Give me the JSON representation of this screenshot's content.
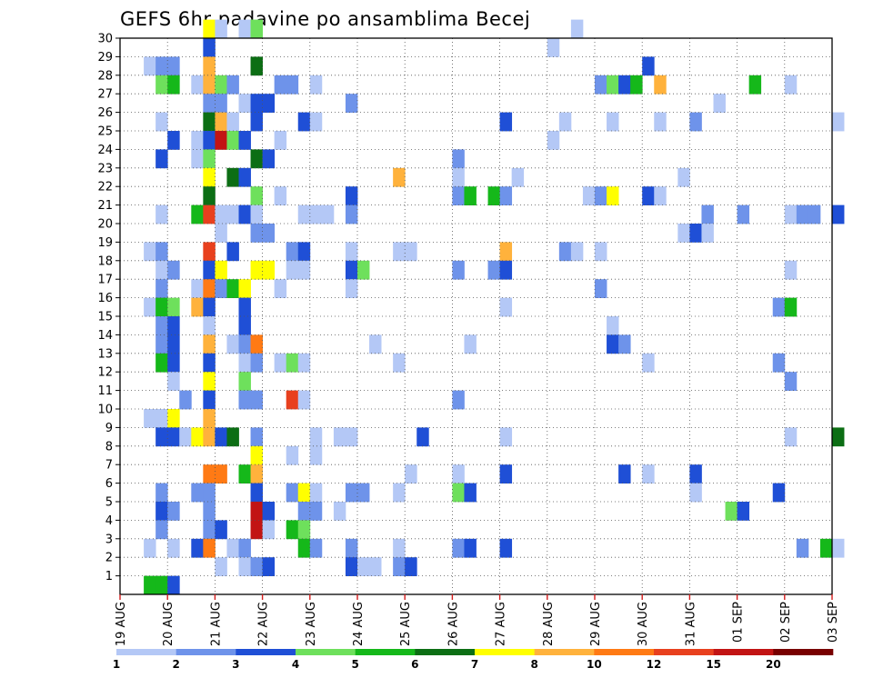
{
  "chart_data": {
    "type": "heatmap",
    "title": "GEFS 6hr padavine po ansamblima Becej",
    "x_tick_labels": [
      "19 AUG",
      "20 AUG",
      "21 AUG",
      "22 AUG",
      "23 AUG",
      "24 AUG",
      "25 AUG",
      "26 AUG",
      "27 AUG",
      "28 AUG",
      "29 AUG",
      "30 AUG",
      "31 AUG",
      "01 SEP",
      "02 SEP",
      "03 SEP"
    ],
    "x_range": [
      "19 AUG 00h",
      "03 SEP 00h"
    ],
    "x_step_hours": 6,
    "y_tick_labels": [
      "1",
      "2",
      "3",
      "4",
      "5",
      "6",
      "7",
      "8",
      "9",
      "10",
      "11",
      "12",
      "13",
      "14",
      "15",
      "16",
      "17",
      "18",
      "19",
      "20",
      "21",
      "22",
      "23",
      "24",
      "25",
      "26",
      "27",
      "28",
      "29",
      "30"
    ],
    "y_range": [
      0,
      30
    ],
    "grid": true,
    "legend_position": "bottom",
    "color_scale": [
      {
        "label": "1",
        "color": "#b4c8f6"
      },
      {
        "label": "2",
        "color": "#6e93ea"
      },
      {
        "label": "3",
        "color": "#1f4fd6"
      },
      {
        "label": "4",
        "color": "#6ee05c"
      },
      {
        "label": "5",
        "color": "#15b81a"
      },
      {
        "label": "6",
        "color": "#0c6e14"
      },
      {
        "label": "7",
        "color": "#ffff00"
      },
      {
        "label": "8",
        "color": "#ffb23c"
      },
      {
        "label": "10",
        "color": "#ff7a14"
      },
      {
        "label": "12",
        "color": "#e8401e"
      },
      {
        "label": "15",
        "color": "#c21414"
      },
      {
        "label": "20",
        "color": "#780000"
      }
    ],
    "cells_note": "each cell: [member, step index from 19 AUG 00h in 6hr steps, color class index 0-11]",
    "cells": [
      [
        30,
        7,
        6
      ],
      [
        30,
        8,
        0
      ],
      [
        30,
        10,
        0
      ],
      [
        30,
        11,
        3
      ],
      [
        30,
        38,
        0
      ],
      [
        29,
        7,
        2
      ],
      [
        29,
        36,
        0
      ],
      [
        28,
        2,
        0
      ],
      [
        28,
        3,
        1
      ],
      [
        28,
        4,
        1
      ],
      [
        28,
        7,
        7
      ],
      [
        28,
        11,
        5
      ],
      [
        28,
        44,
        2
      ],
      [
        27,
        3,
        3
      ],
      [
        27,
        4,
        4
      ],
      [
        27,
        6,
        0
      ],
      [
        27,
        7,
        7
      ],
      [
        27,
        8,
        3
      ],
      [
        27,
        9,
        1
      ],
      [
        27,
        13,
        1
      ],
      [
        27,
        14,
        1
      ],
      [
        27,
        16,
        0
      ],
      [
        27,
        40,
        1
      ],
      [
        27,
        41,
        3
      ],
      [
        27,
        42,
        2
      ],
      [
        27,
        43,
        4
      ],
      [
        27,
        45,
        7
      ],
      [
        27,
        53,
        4
      ],
      [
        27,
        56,
        0
      ],
      [
        26,
        7,
        1
      ],
      [
        26,
        8,
        1
      ],
      [
        26,
        10,
        0
      ],
      [
        26,
        11,
        2
      ],
      [
        26,
        12,
        2
      ],
      [
        26,
        19,
        1
      ],
      [
        26,
        50,
        0
      ],
      [
        25,
        3,
        0
      ],
      [
        25,
        7,
        5
      ],
      [
        25,
        8,
        7
      ],
      [
        25,
        9,
        0
      ],
      [
        25,
        11,
        2
      ],
      [
        25,
        15,
        2
      ],
      [
        25,
        16,
        0
      ],
      [
        25,
        32,
        2
      ],
      [
        25,
        37,
        0
      ],
      [
        25,
        41,
        0
      ],
      [
        25,
        45,
        0
      ],
      [
        25,
        48,
        1
      ],
      [
        25,
        60,
        0
      ],
      [
        24,
        4,
        2
      ],
      [
        24,
        6,
        0
      ],
      [
        24,
        7,
        2
      ],
      [
        24,
        8,
        10
      ],
      [
        24,
        9,
        3
      ],
      [
        24,
        10,
        2
      ],
      [
        24,
        13,
        0
      ],
      [
        24,
        36,
        0
      ],
      [
        23,
        3,
        2
      ],
      [
        23,
        6,
        0
      ],
      [
        23,
        7,
        3
      ],
      [
        23,
        11,
        5
      ],
      [
        23,
        12,
        2
      ],
      [
        23,
        28,
        1
      ],
      [
        22,
        7,
        6
      ],
      [
        22,
        9,
        5
      ],
      [
        22,
        10,
        2
      ],
      [
        22,
        23,
        7
      ],
      [
        22,
        28,
        0
      ],
      [
        22,
        33,
        0
      ],
      [
        22,
        47,
        0
      ],
      [
        21,
        7,
        5
      ],
      [
        21,
        11,
        3
      ],
      [
        21,
        13,
        0
      ],
      [
        21,
        19,
        2
      ],
      [
        21,
        28,
        1
      ],
      [
        21,
        29,
        4
      ],
      [
        21,
        31,
        4
      ],
      [
        21,
        32,
        1
      ],
      [
        21,
        39,
        0
      ],
      [
        21,
        40,
        1
      ],
      [
        21,
        41,
        6
      ],
      [
        21,
        44,
        2
      ],
      [
        21,
        45,
        0
      ],
      [
        20,
        3,
        0
      ],
      [
        20,
        6,
        4
      ],
      [
        20,
        7,
        9
      ],
      [
        20,
        8,
        0
      ],
      [
        20,
        9,
        0
      ],
      [
        20,
        10,
        2
      ],
      [
        20,
        11,
        0
      ],
      [
        20,
        15,
        0
      ],
      [
        20,
        16,
        0
      ],
      [
        20,
        17,
        0
      ],
      [
        20,
        19,
        1
      ],
      [
        20,
        49,
        1
      ],
      [
        20,
        52,
        1
      ],
      [
        20,
        56,
        0
      ],
      [
        20,
        57,
        1
      ],
      [
        20,
        58,
        1
      ],
      [
        20,
        60,
        2
      ],
      [
        19,
        8,
        0
      ],
      [
        19,
        11,
        1
      ],
      [
        19,
        12,
        1
      ],
      [
        19,
        47,
        0
      ],
      [
        19,
        48,
        2
      ],
      [
        19,
        49,
        0
      ],
      [
        18,
        2,
        0
      ],
      [
        18,
        3,
        1
      ],
      [
        18,
        7,
        9
      ],
      [
        18,
        9,
        2
      ],
      [
        18,
        14,
        1
      ],
      [
        18,
        15,
        2
      ],
      [
        18,
        19,
        0
      ],
      [
        18,
        23,
        0
      ],
      [
        18,
        24,
        0
      ],
      [
        18,
        32,
        7
      ],
      [
        18,
        37,
        1
      ],
      [
        18,
        38,
        0
      ],
      [
        18,
        40,
        0
      ],
      [
        17,
        3,
        0
      ],
      [
        17,
        4,
        1
      ],
      [
        17,
        7,
        2
      ],
      [
        17,
        8,
        6
      ],
      [
        17,
        11,
        6
      ],
      [
        17,
        12,
        6
      ],
      [
        17,
        14,
        0
      ],
      [
        17,
        15,
        0
      ],
      [
        17,
        19,
        2
      ],
      [
        17,
        20,
        3
      ],
      [
        17,
        28,
        1
      ],
      [
        17,
        31,
        1
      ],
      [
        17,
        32,
        2
      ],
      [
        17,
        56,
        0
      ],
      [
        16,
        3,
        1
      ],
      [
        16,
        6,
        0
      ],
      [
        16,
        7,
        8
      ],
      [
        16,
        8,
        1
      ],
      [
        16,
        9,
        4
      ],
      [
        16,
        10,
        6
      ],
      [
        16,
        13,
        0
      ],
      [
        16,
        19,
        0
      ],
      [
        16,
        40,
        1
      ],
      [
        15,
        2,
        0
      ],
      [
        15,
        3,
        4
      ],
      [
        15,
        4,
        3
      ],
      [
        15,
        6,
        7
      ],
      [
        15,
        7,
        2
      ],
      [
        15,
        10,
        2
      ],
      [
        15,
        32,
        0
      ],
      [
        15,
        55,
        1
      ],
      [
        15,
        56,
        4
      ],
      [
        14,
        3,
        1
      ],
      [
        14,
        4,
        2
      ],
      [
        14,
        7,
        0
      ],
      [
        14,
        10,
        2
      ],
      [
        14,
        41,
        0
      ],
      [
        13,
        3,
        1
      ],
      [
        13,
        4,
        2
      ],
      [
        13,
        7,
        7
      ],
      [
        13,
        9,
        0
      ],
      [
        13,
        10,
        1
      ],
      [
        13,
        11,
        8
      ],
      [
        13,
        21,
        0
      ],
      [
        13,
        29,
        0
      ],
      [
        13,
        41,
        2
      ],
      [
        13,
        42,
        1
      ],
      [
        12,
        3,
        4
      ],
      [
        12,
        4,
        2
      ],
      [
        12,
        7,
        2
      ],
      [
        12,
        10,
        0
      ],
      [
        12,
        11,
        1
      ],
      [
        12,
        13,
        0
      ],
      [
        12,
        14,
        3
      ],
      [
        12,
        15,
        0
      ],
      [
        12,
        23,
        0
      ],
      [
        12,
        44,
        0
      ],
      [
        12,
        55,
        1
      ],
      [
        11,
        4,
        0
      ],
      [
        11,
        7,
        6
      ],
      [
        11,
        10,
        3
      ],
      [
        11,
        56,
        1
      ],
      [
        10,
        5,
        1
      ],
      [
        10,
        7,
        2
      ],
      [
        10,
        10,
        1
      ],
      [
        10,
        11,
        1
      ],
      [
        10,
        14,
        9
      ],
      [
        10,
        15,
        0
      ],
      [
        10,
        28,
        1
      ],
      [
        9,
        2,
        0
      ],
      [
        9,
        3,
        0
      ],
      [
        9,
        4,
        6
      ],
      [
        9,
        7,
        7
      ],
      [
        8,
        3,
        2
      ],
      [
        8,
        4,
        2
      ],
      [
        8,
        5,
        0
      ],
      [
        8,
        6,
        6
      ],
      [
        8,
        7,
        7
      ],
      [
        8,
        8,
        2
      ],
      [
        8,
        9,
        5
      ],
      [
        8,
        11,
        1
      ],
      [
        8,
        16,
        0
      ],
      [
        8,
        18,
        0
      ],
      [
        8,
        19,
        0
      ],
      [
        8,
        25,
        2
      ],
      [
        8,
        32,
        0
      ],
      [
        8,
        56,
        0
      ],
      [
        8,
        60,
        5
      ],
      [
        7,
        11,
        6
      ],
      [
        7,
        14,
        0
      ],
      [
        7,
        16,
        0
      ],
      [
        6,
        7,
        8
      ],
      [
        6,
        8,
        8
      ],
      [
        6,
        10,
        4
      ],
      [
        6,
        11,
        7
      ],
      [
        6,
        24,
        0
      ],
      [
        6,
        28,
        0
      ],
      [
        6,
        32,
        2
      ],
      [
        6,
        42,
        2
      ],
      [
        6,
        44,
        0
      ],
      [
        6,
        48,
        2
      ],
      [
        5,
        3,
        1
      ],
      [
        5,
        6,
        1
      ],
      [
        5,
        7,
        1
      ],
      [
        5,
        11,
        2
      ],
      [
        5,
        14,
        1
      ],
      [
        5,
        15,
        6
      ],
      [
        5,
        16,
        0
      ],
      [
        5,
        19,
        1
      ],
      [
        5,
        20,
        1
      ],
      [
        5,
        23,
        0
      ],
      [
        5,
        28,
        3
      ],
      [
        5,
        29,
        2
      ],
      [
        5,
        48,
        0
      ],
      [
        5,
        55,
        2
      ],
      [
        4,
        3,
        2
      ],
      [
        4,
        4,
        1
      ],
      [
        4,
        7,
        1
      ],
      [
        4,
        11,
        10
      ],
      [
        4,
        12,
        2
      ],
      [
        4,
        15,
        1
      ],
      [
        4,
        16,
        1
      ],
      [
        4,
        18,
        0
      ],
      [
        4,
        51,
        3
      ],
      [
        4,
        52,
        2
      ],
      [
        3,
        3,
        1
      ],
      [
        3,
        7,
        1
      ],
      [
        3,
        8,
        2
      ],
      [
        3,
        11,
        10
      ],
      [
        3,
        12,
        0
      ],
      [
        3,
        14,
        4
      ],
      [
        3,
        15,
        3
      ],
      [
        2,
        2,
        0
      ],
      [
        2,
        4,
        0
      ],
      [
        2,
        6,
        2
      ],
      [
        2,
        7,
        8
      ],
      [
        2,
        9,
        0
      ],
      [
        2,
        10,
        1
      ],
      [
        2,
        15,
        4
      ],
      [
        2,
        16,
        1
      ],
      [
        2,
        19,
        1
      ],
      [
        2,
        23,
        0
      ],
      [
        2,
        28,
        1
      ],
      [
        2,
        29,
        2
      ],
      [
        2,
        32,
        2
      ],
      [
        2,
        57,
        1
      ],
      [
        2,
        59,
        4
      ],
      [
        2,
        60,
        0
      ],
      [
        1,
        8,
        0
      ],
      [
        1,
        10,
        0
      ],
      [
        1,
        11,
        1
      ],
      [
        1,
        12,
        2
      ],
      [
        1,
        19,
        2
      ],
      [
        1,
        20,
        0
      ],
      [
        1,
        21,
        0
      ],
      [
        1,
        23,
        1
      ],
      [
        1,
        24,
        2
      ],
      [
        0,
        2,
        4
      ],
      [
        0,
        3,
        4
      ],
      [
        0,
        4,
        2
      ]
    ]
  }
}
